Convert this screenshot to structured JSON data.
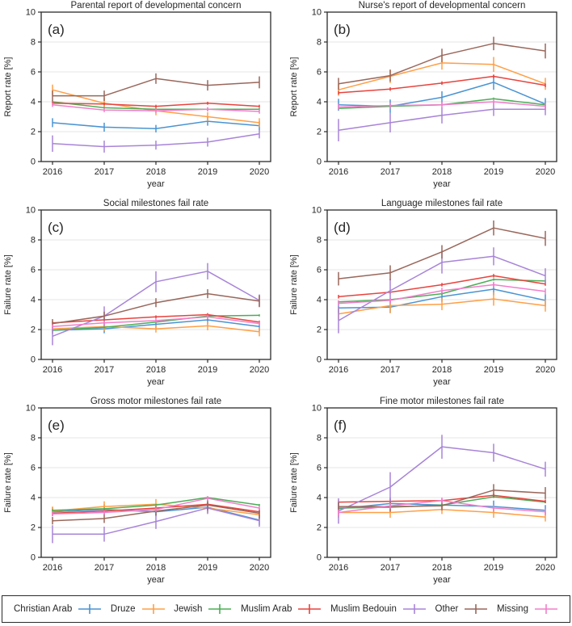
{
  "figure": {
    "background": "#ffffff",
    "axis_color": "#2b2b2b",
    "grid_color": "#e4e4e6",
    "text_color": "#262626"
  },
  "legend": {
    "items": [
      {
        "label": "Christian Arab",
        "slug": "christian-arab",
        "color": "#4a94d2"
      },
      {
        "label": "Druze",
        "slug": "druze",
        "color": "#ff9f45"
      },
      {
        "label": "Jewish",
        "slug": "jewish",
        "color": "#4bae56"
      },
      {
        "label": "Muslim Arab",
        "slug": "muslim-arab",
        "color": "#e8433d"
      },
      {
        "label": "Muslim Bedouin",
        "slug": "muslim-bedouin",
        "color": "#a884d8"
      },
      {
        "label": "Other",
        "slug": "other",
        "color": "#99675b"
      },
      {
        "label": "Missing",
        "slug": "missing",
        "color": "#f27ecc"
      }
    ]
  },
  "chart_data": [
    {
      "type": "line",
      "panel": "(a)",
      "title": "Parental report of developmental concern",
      "xlabel": "year",
      "ylabel": "Report rate [%]",
      "x": [
        2016,
        2017,
        2018,
        2019,
        2020
      ],
      "ylim": [
        0,
        10
      ],
      "yticks": [
        0,
        2,
        4,
        6,
        8,
        10
      ],
      "grid": "horizontal",
      "series": [
        {
          "name": "Christian Arab",
          "color": "#4a94d2",
          "values": [
            2.6,
            2.3,
            2.2,
            2.7,
            2.4
          ],
          "err": [
            0.3,
            0.3,
            0.25,
            0.3,
            0.3
          ]
        },
        {
          "name": "Druze",
          "color": "#ff9f45",
          "values": [
            4.8,
            3.9,
            3.4,
            3.0,
            2.6
          ],
          "err": [
            0.35,
            0.35,
            0.3,
            0.3,
            0.3
          ]
        },
        {
          "name": "Jewish",
          "color": "#4bae56",
          "values": [
            4.0,
            3.6,
            3.5,
            3.5,
            3.5
          ],
          "err": [
            0.08,
            0.08,
            0.08,
            0.08,
            0.08
          ]
        },
        {
          "name": "Muslim Arab",
          "color": "#e8433d",
          "values": [
            3.9,
            3.85,
            3.7,
            3.9,
            3.7
          ],
          "err": [
            0.1,
            0.1,
            0.1,
            0.1,
            0.1
          ]
        },
        {
          "name": "Muslim Bedouin",
          "color": "#a884d8",
          "values": [
            1.2,
            1.0,
            1.1,
            1.3,
            1.85
          ],
          "err": [
            0.55,
            0.4,
            0.3,
            0.3,
            0.3
          ]
        },
        {
          "name": "Other",
          "color": "#99675b",
          "values": [
            4.4,
            4.4,
            5.55,
            5.1,
            5.3
          ],
          "err": [
            0.35,
            0.35,
            0.35,
            0.35,
            0.4
          ]
        },
        {
          "name": "Missing",
          "color": "#f27ecc",
          "values": [
            3.8,
            3.45,
            3.4,
            3.5,
            3.35
          ],
          "err": [
            0.15,
            0.15,
            0.15,
            0.15,
            0.15
          ]
        }
      ]
    },
    {
      "type": "line",
      "panel": "(b)",
      "title": "Nurse's report of developmental concern",
      "xlabel": "year",
      "ylabel": "Report rate [%]",
      "x": [
        2016,
        2017,
        2018,
        2019,
        2020
      ],
      "ylim": [
        0,
        10
      ],
      "yticks": [
        0,
        2,
        4,
        6,
        8,
        10
      ],
      "grid": "horizontal",
      "series": [
        {
          "name": "Christian Arab",
          "color": "#4a94d2",
          "values": [
            3.8,
            3.7,
            4.3,
            5.3,
            3.85
          ],
          "err": [
            0.4,
            0.45,
            0.4,
            0.5,
            0.4
          ]
        },
        {
          "name": "Druze",
          "color": "#ff9f45",
          "values": [
            4.8,
            5.7,
            6.6,
            6.5,
            5.2
          ],
          "err": [
            0.4,
            0.45,
            0.45,
            0.5,
            0.4
          ]
        },
        {
          "name": "Jewish",
          "color": "#4bae56",
          "values": [
            3.55,
            3.7,
            3.8,
            4.2,
            3.8
          ],
          "err": [
            0.08,
            0.08,
            0.08,
            0.08,
            0.08
          ]
        },
        {
          "name": "Muslim Arab",
          "color": "#e8433d",
          "values": [
            4.6,
            4.85,
            5.25,
            5.7,
            5.1
          ],
          "err": [
            0.12,
            0.12,
            0.12,
            0.12,
            0.12
          ]
        },
        {
          "name": "Muslim Bedouin",
          "color": "#a884d8",
          "values": [
            2.1,
            2.6,
            3.1,
            3.5,
            3.5
          ],
          "err": [
            0.75,
            0.65,
            0.55,
            0.45,
            0.4
          ]
        },
        {
          "name": "Other",
          "color": "#99675b",
          "values": [
            5.2,
            5.75,
            7.1,
            7.9,
            7.4
          ],
          "err": [
            0.4,
            0.4,
            0.45,
            0.45,
            0.5
          ]
        },
        {
          "name": "Missing",
          "color": "#f27ecc",
          "values": [
            3.65,
            3.75,
            3.8,
            4.0,
            3.7
          ],
          "err": [
            0.2,
            0.2,
            0.2,
            0.2,
            0.2
          ]
        }
      ]
    },
    {
      "type": "line",
      "panel": "(c)",
      "title": "Social milestones fail rate",
      "xlabel": "year",
      "ylabel": "Failure rate [%]",
      "x": [
        2016,
        2017,
        2018,
        2019,
        2020
      ],
      "ylim": [
        0,
        10
      ],
      "yticks": [
        0,
        2,
        4,
        6,
        8,
        10
      ],
      "grid": "horizontal",
      "series": [
        {
          "name": "Christian Arab",
          "color": "#4a94d2",
          "values": [
            1.95,
            2.05,
            2.35,
            2.65,
            2.2
          ],
          "err": [
            0.25,
            0.3,
            0.25,
            0.3,
            0.3
          ]
        },
        {
          "name": "Druze",
          "color": "#ff9f45",
          "values": [
            2.05,
            2.2,
            2.05,
            2.25,
            1.85
          ],
          "err": [
            0.3,
            0.3,
            0.25,
            0.3,
            0.3
          ]
        },
        {
          "name": "Jewish",
          "color": "#4bae56",
          "values": [
            1.95,
            2.15,
            2.5,
            2.9,
            2.95
          ],
          "err": [
            0.07,
            0.07,
            0.07,
            0.07,
            0.07
          ]
        },
        {
          "name": "Muslim Arab",
          "color": "#e8433d",
          "values": [
            2.45,
            2.65,
            2.85,
            3.0,
            2.5
          ],
          "err": [
            0.1,
            0.1,
            0.1,
            0.1,
            0.1
          ]
        },
        {
          "name": "Muslim Bedouin",
          "color": "#a884d8",
          "values": [
            1.55,
            2.9,
            5.2,
            5.9,
            3.95
          ],
          "err": [
            0.6,
            0.65,
            0.7,
            0.55,
            0.4
          ]
        },
        {
          "name": "Other",
          "color": "#99675b",
          "values": [
            2.4,
            2.9,
            3.8,
            4.4,
            3.9
          ],
          "err": [
            0.3,
            0.3,
            0.3,
            0.3,
            0.4
          ]
        },
        {
          "name": "Missing",
          "color": "#f27ecc",
          "values": [
            2.2,
            2.45,
            2.6,
            2.85,
            2.4
          ],
          "err": [
            0.15,
            0.15,
            0.15,
            0.15,
            0.15
          ]
        }
      ]
    },
    {
      "type": "line",
      "panel": "(d)",
      "title": "Language milestones fail rate",
      "xlabel": "year",
      "ylabel": "Failure rate [%]",
      "x": [
        2016,
        2017,
        2018,
        2019,
        2020
      ],
      "ylim": [
        0,
        10
      ],
      "yticks": [
        0,
        2,
        4,
        6,
        8,
        10
      ],
      "grid": "horizontal",
      "series": [
        {
          "name": "Christian Arab",
          "color": "#4a94d2",
          "values": [
            3.45,
            3.5,
            4.2,
            4.7,
            3.95
          ],
          "err": [
            0.35,
            0.4,
            0.35,
            0.4,
            0.4
          ]
        },
        {
          "name": "Druze",
          "color": "#ff9f45",
          "values": [
            3.05,
            3.6,
            3.7,
            4.05,
            3.6
          ],
          "err": [
            0.4,
            0.5,
            0.4,
            0.45,
            0.4
          ]
        },
        {
          "name": "Jewish",
          "color": "#4bae56",
          "values": [
            3.85,
            4.0,
            4.4,
            5.35,
            5.25
          ],
          "err": [
            0.08,
            0.08,
            0.08,
            0.08,
            0.08
          ]
        },
        {
          "name": "Muslim Arab",
          "color": "#e8433d",
          "values": [
            4.2,
            4.5,
            5.0,
            5.6,
            5.05
          ],
          "err": [
            0.12,
            0.12,
            0.12,
            0.12,
            0.12
          ]
        },
        {
          "name": "Muslim Bedouin",
          "color": "#a884d8",
          "values": [
            2.6,
            4.6,
            6.5,
            6.9,
            5.6
          ],
          "err": [
            0.85,
            0.8,
            0.75,
            0.6,
            0.5
          ]
        },
        {
          "name": "Other",
          "color": "#99675b",
          "values": [
            5.4,
            5.8,
            7.2,
            8.8,
            8.1
          ],
          "err": [
            0.45,
            0.5,
            0.45,
            0.5,
            0.5
          ]
        },
        {
          "name": "Missing",
          "color": "#f27ecc",
          "values": [
            3.75,
            3.95,
            4.6,
            5.0,
            4.55
          ],
          "err": [
            0.2,
            0.2,
            0.2,
            0.2,
            0.2
          ]
        }
      ]
    },
    {
      "type": "line",
      "panel": "(e)",
      "title": "Gross motor milestones fail rate",
      "xlabel": "year",
      "ylabel": "Failure rate [%]",
      "x": [
        2016,
        2017,
        2018,
        2019,
        2020
      ],
      "ylim": [
        0,
        10
      ],
      "yticks": [
        0,
        2,
        4,
        6,
        8,
        10
      ],
      "grid": "horizontal",
      "series": [
        {
          "name": "Christian Arab",
          "color": "#4a94d2",
          "values": [
            3.05,
            3.2,
            3.05,
            3.35,
            2.5
          ],
          "err": [
            0.3,
            0.35,
            0.3,
            0.35,
            0.35
          ]
        },
        {
          "name": "Druze",
          "color": "#ff9f45",
          "values": [
            3.1,
            3.4,
            3.55,
            3.3,
            2.85
          ],
          "err": [
            0.3,
            0.35,
            0.35,
            0.35,
            0.3
          ]
        },
        {
          "name": "Jewish",
          "color": "#4bae56",
          "values": [
            3.15,
            3.25,
            3.5,
            4.0,
            3.5
          ],
          "err": [
            0.07,
            0.07,
            0.07,
            0.07,
            0.07
          ]
        },
        {
          "name": "Muslim Arab",
          "color": "#e8433d",
          "values": [
            2.95,
            3.1,
            3.3,
            3.55,
            3.05
          ],
          "err": [
            0.1,
            0.1,
            0.1,
            0.1,
            0.1
          ]
        },
        {
          "name": "Muslim Bedouin",
          "color": "#a884d8",
          "values": [
            1.55,
            1.55,
            2.4,
            3.3,
            2.45
          ],
          "err": [
            0.6,
            0.5,
            0.5,
            0.4,
            0.4
          ]
        },
        {
          "name": "Other",
          "color": "#99675b",
          "values": [
            2.45,
            2.6,
            3.1,
            3.5,
            2.95
          ],
          "err": [
            0.25,
            0.3,
            0.3,
            0.35,
            0.35
          ]
        },
        {
          "name": "Missing",
          "color": "#f27ecc",
          "values": [
            2.9,
            3.0,
            3.2,
            3.95,
            3.3
          ],
          "err": [
            0.15,
            0.15,
            0.15,
            0.15,
            0.15
          ]
        }
      ]
    },
    {
      "type": "line",
      "panel": "(f)",
      "title": "Fine motor milestones fail rate",
      "xlabel": "year",
      "ylabel": "Failure rate [%]",
      "x": [
        2016,
        2017,
        2018,
        2019,
        2020
      ],
      "ylim": [
        0,
        10
      ],
      "yticks": [
        0,
        2,
        4,
        6,
        8,
        10
      ],
      "grid": "horizontal",
      "series": [
        {
          "name": "Christian Arab",
          "color": "#4a94d2",
          "values": [
            3.25,
            3.6,
            3.5,
            3.4,
            3.15
          ],
          "err": [
            0.35,
            0.4,
            0.35,
            0.4,
            0.35
          ]
        },
        {
          "name": "Druze",
          "color": "#ff9f45",
          "values": [
            3.0,
            3.0,
            3.2,
            3.0,
            2.7
          ],
          "err": [
            0.35,
            0.35,
            0.3,
            0.35,
            0.3
          ]
        },
        {
          "name": "Jewish",
          "color": "#4bae56",
          "values": [
            3.3,
            3.35,
            3.5,
            4.05,
            3.7
          ],
          "err": [
            0.08,
            0.08,
            0.08,
            0.08,
            0.08
          ]
        },
        {
          "name": "Muslim Arab",
          "color": "#e8433d",
          "values": [
            3.7,
            3.75,
            3.8,
            4.15,
            3.75
          ],
          "err": [
            0.12,
            0.12,
            0.12,
            0.12,
            0.12
          ]
        },
        {
          "name": "Muslim Bedouin",
          "color": "#a884d8",
          "values": [
            3.1,
            4.7,
            7.4,
            7.0,
            5.9
          ],
          "err": [
            0.85,
            1.0,
            0.8,
            0.6,
            0.5
          ]
        },
        {
          "name": "Other",
          "color": "#99675b",
          "values": [
            3.4,
            3.4,
            3.45,
            4.5,
            4.3
          ],
          "err": [
            0.3,
            0.35,
            0.3,
            0.4,
            0.4
          ]
        },
        {
          "name": "Missing",
          "color": "#f27ecc",
          "values": [
            3.0,
            3.45,
            3.8,
            3.3,
            3.05
          ],
          "err": [
            0.2,
            0.2,
            0.2,
            0.2,
            0.2
          ]
        }
      ]
    }
  ]
}
